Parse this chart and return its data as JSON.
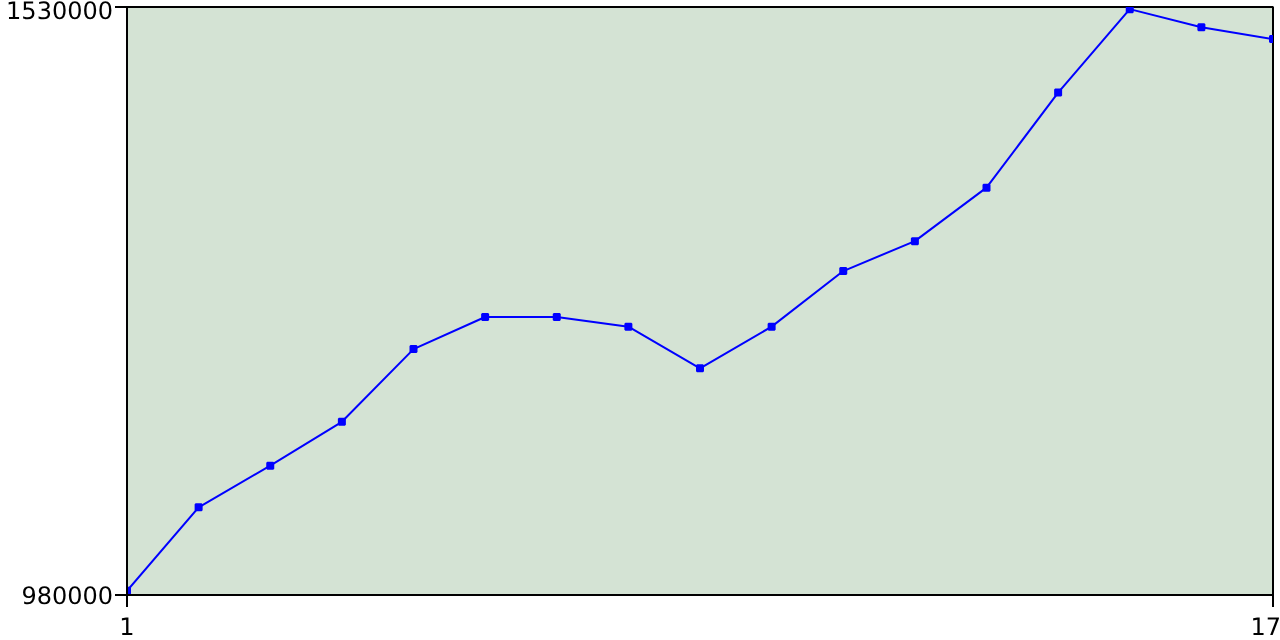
{
  "chart_data": {
    "type": "line",
    "x": [
      1,
      2,
      3,
      4,
      5,
      6,
      7,
      8,
      9,
      10,
      11,
      12,
      13,
      14,
      15,
      16,
      17
    ],
    "series": [
      {
        "color": "#0000ff",
        "values": [
          984000,
          1062000,
          1101000,
          1142000,
          1210000,
          1240000,
          1240000,
          1231000,
          1192000,
          1231000,
          1283000,
          1311000,
          1361000,
          1450000,
          1528000,
          1511000,
          1500000
        ]
      }
    ],
    "xlim": [
      1,
      17
    ],
    "ylim": [
      980000,
      1530000
    ],
    "xticks": [
      1,
      17
    ],
    "yticks": [
      980000,
      1530000
    ],
    "marker": "square",
    "line_style": "solid"
  }
}
